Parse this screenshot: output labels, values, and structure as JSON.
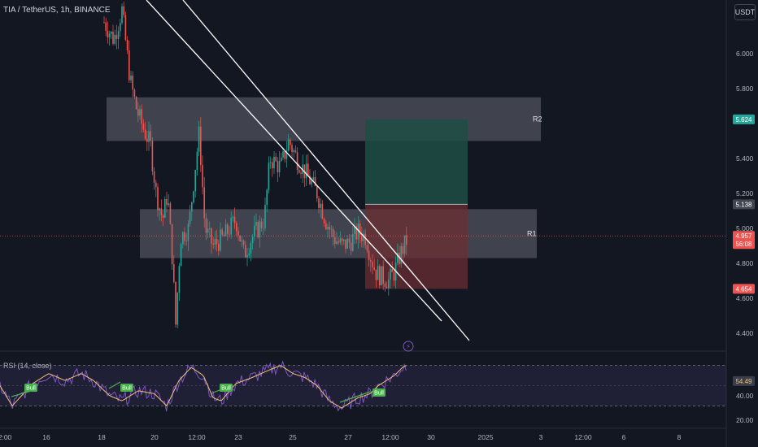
{
  "header": {
    "symbol_line": "TIA / TetherUS, 1h, BINANCE",
    "currency_button": "USDT"
  },
  "colors": {
    "background": "#131722",
    "up": "#26a69a",
    "down": "#ef5350",
    "zone": "#787b86",
    "trendline": "#ffffff",
    "rsi": "#7e57c2",
    "rsi_ma": "#f0c27b",
    "bull_label": "#4caf50",
    "target_zone": "#1e4d45",
    "stop_zone": "#6b2e33"
  },
  "chart_data": [
    {
      "type": "candlestick",
      "title": "",
      "symbol": "TIA / TetherUS",
      "timeframe": "1h",
      "exchange": "BINANCE",
      "price_axis": {
        "ticks": [
          "6.000",
          "5.800",
          "5.400",
          "5.200",
          "5.000",
          "4.800",
          "4.600",
          "4.400"
        ],
        "range": [
          4.3,
          6.2
        ]
      },
      "time_axis": {
        "ticks": [
          "2:00",
          "16",
          "18",
          "20",
          "12:00",
          "23",
          "25",
          "27",
          "12:00",
          "30",
          "2025",
          "3",
          "12:00",
          "6",
          "8"
        ]
      },
      "price_markers": [
        {
          "value": "5.624",
          "kind": "target"
        },
        {
          "value": "5.138",
          "kind": "entry"
        },
        {
          "value": "4.957",
          "sub": "56:08",
          "kind": "last"
        },
        {
          "value": "4.654",
          "kind": "stop"
        }
      ],
      "zones": [
        {
          "label": "R2",
          "top": 5.75,
          "bottom": 5.5
        },
        {
          "label": "R1",
          "top": 5.11,
          "bottom": 4.83
        }
      ],
      "position": {
        "entry": 5.138,
        "target": 5.624,
        "stop": 4.654
      }
    },
    {
      "type": "line",
      "title": "RSI (14, close)",
      "last_value": "54.49",
      "y_ticks": [
        "40.00",
        "20.00"
      ],
      "bands": [
        70,
        30
      ],
      "signals": [
        "Bull",
        "Bull",
        "Bull",
        "Bull"
      ]
    }
  ]
}
